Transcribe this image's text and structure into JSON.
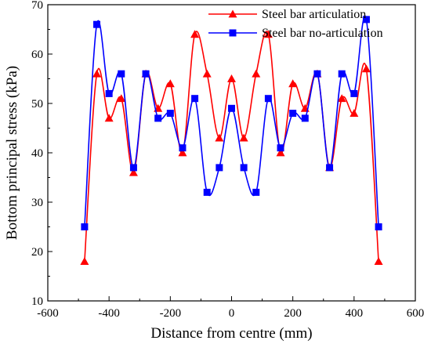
{
  "chart_data": {
    "type": "line",
    "title": "",
    "xlabel": "Distance from centre (mm)",
    "ylabel": "Bottom principal stress (kPa)",
    "xlim": [
      -600,
      600
    ],
    "ylim": [
      10,
      70
    ],
    "xticks": [
      -600,
      -400,
      -200,
      0,
      200,
      400,
      600
    ],
    "yticks": [
      10,
      20,
      30,
      40,
      50,
      60,
      70
    ],
    "grid": false,
    "legend_position": "top-right",
    "series": [
      {
        "name": "Steel bar articulation",
        "color": "#ff0000",
        "marker": "triangle",
        "x": [
          -480,
          -440,
          -400,
          -360,
          -320,
          -280,
          -240,
          -200,
          -160,
          -120,
          -80,
          -40,
          0,
          40,
          80,
          120,
          160,
          200,
          240,
          280,
          320,
          360,
          400,
          440,
          480
        ],
        "y": [
          18,
          56,
          47,
          51,
          36,
          56,
          49,
          54,
          40,
          64,
          56,
          43,
          55,
          43,
          56,
          64,
          40,
          54,
          49,
          56,
          37,
          51,
          48,
          57,
          18
        ]
      },
      {
        "name": "Steel bar no-articulation",
        "color": "#0000ff",
        "marker": "square",
        "x": [
          -480,
          -440,
          -400,
          -360,
          -320,
          -280,
          -240,
          -200,
          -160,
          -120,
          -80,
          -40,
          0,
          40,
          80,
          120,
          160,
          200,
          240,
          280,
          320,
          360,
          400,
          440,
          480
        ],
        "y": [
          25,
          66,
          52,
          56,
          37,
          56,
          47,
          48,
          41,
          51,
          32,
          37,
          49,
          37,
          32,
          51,
          41,
          48,
          47,
          56,
          37,
          56,
          52,
          67,
          25
        ]
      }
    ]
  }
}
